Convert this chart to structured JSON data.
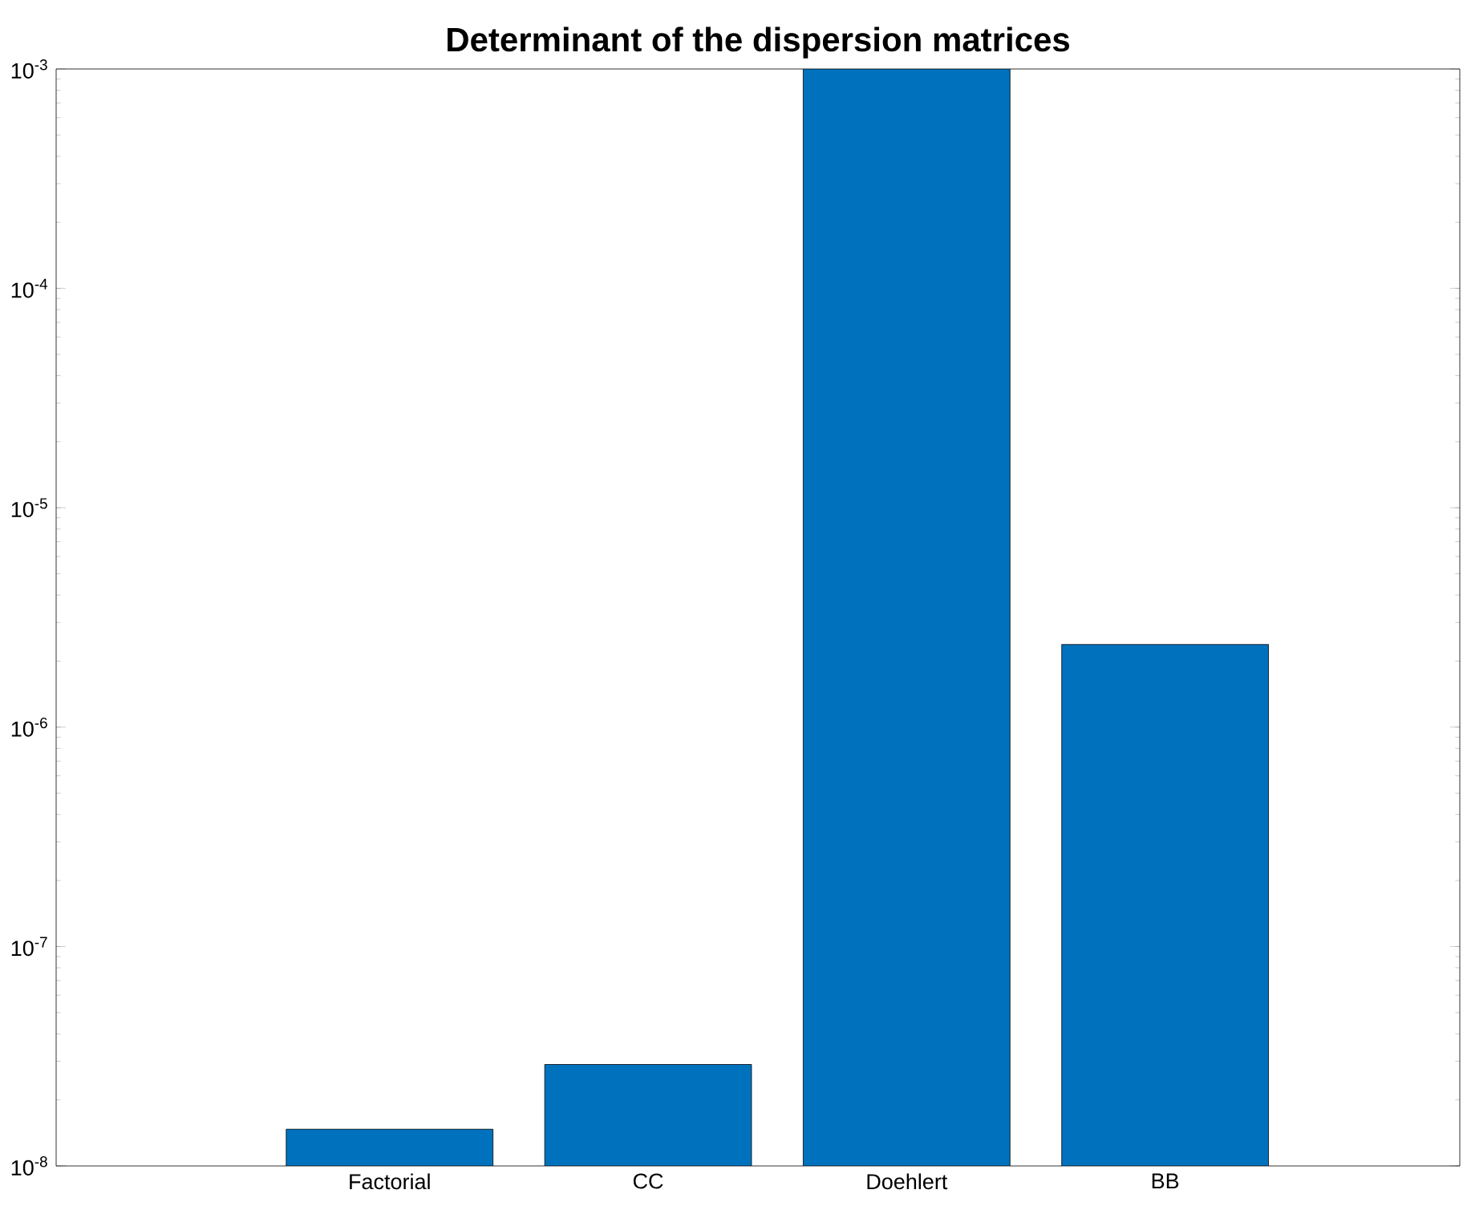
{
  "chart_data": {
    "type": "bar",
    "title": "Determinant of the dispersion matrices",
    "categories": [
      "Factorial",
      "CC",
      "Doehlert",
      "BB"
    ],
    "values": [
      1.47e-08,
      2.9e-08,
      0.001,
      2.38e-06
    ],
    "color": "#0072bd",
    "log": "y",
    "ylim": [
      1e-08,
      0.001
    ],
    "yticks": [
      {
        "value": 1e-08,
        "label": "10$^{-8}$"
      },
      {
        "value": 1e-07,
        "label": "10$^{-7}$"
      },
      {
        "value": 1e-06,
        "label": "10$^{-6}$"
      },
      {
        "value": 1e-05,
        "label": "10$^{-5}$"
      },
      {
        "value": 0.0001,
        "label": "10$^{-4}$"
      },
      {
        "value": 0.001,
        "label": "10$^{-3}$"
      }
    ],
    "grid": false
  }
}
